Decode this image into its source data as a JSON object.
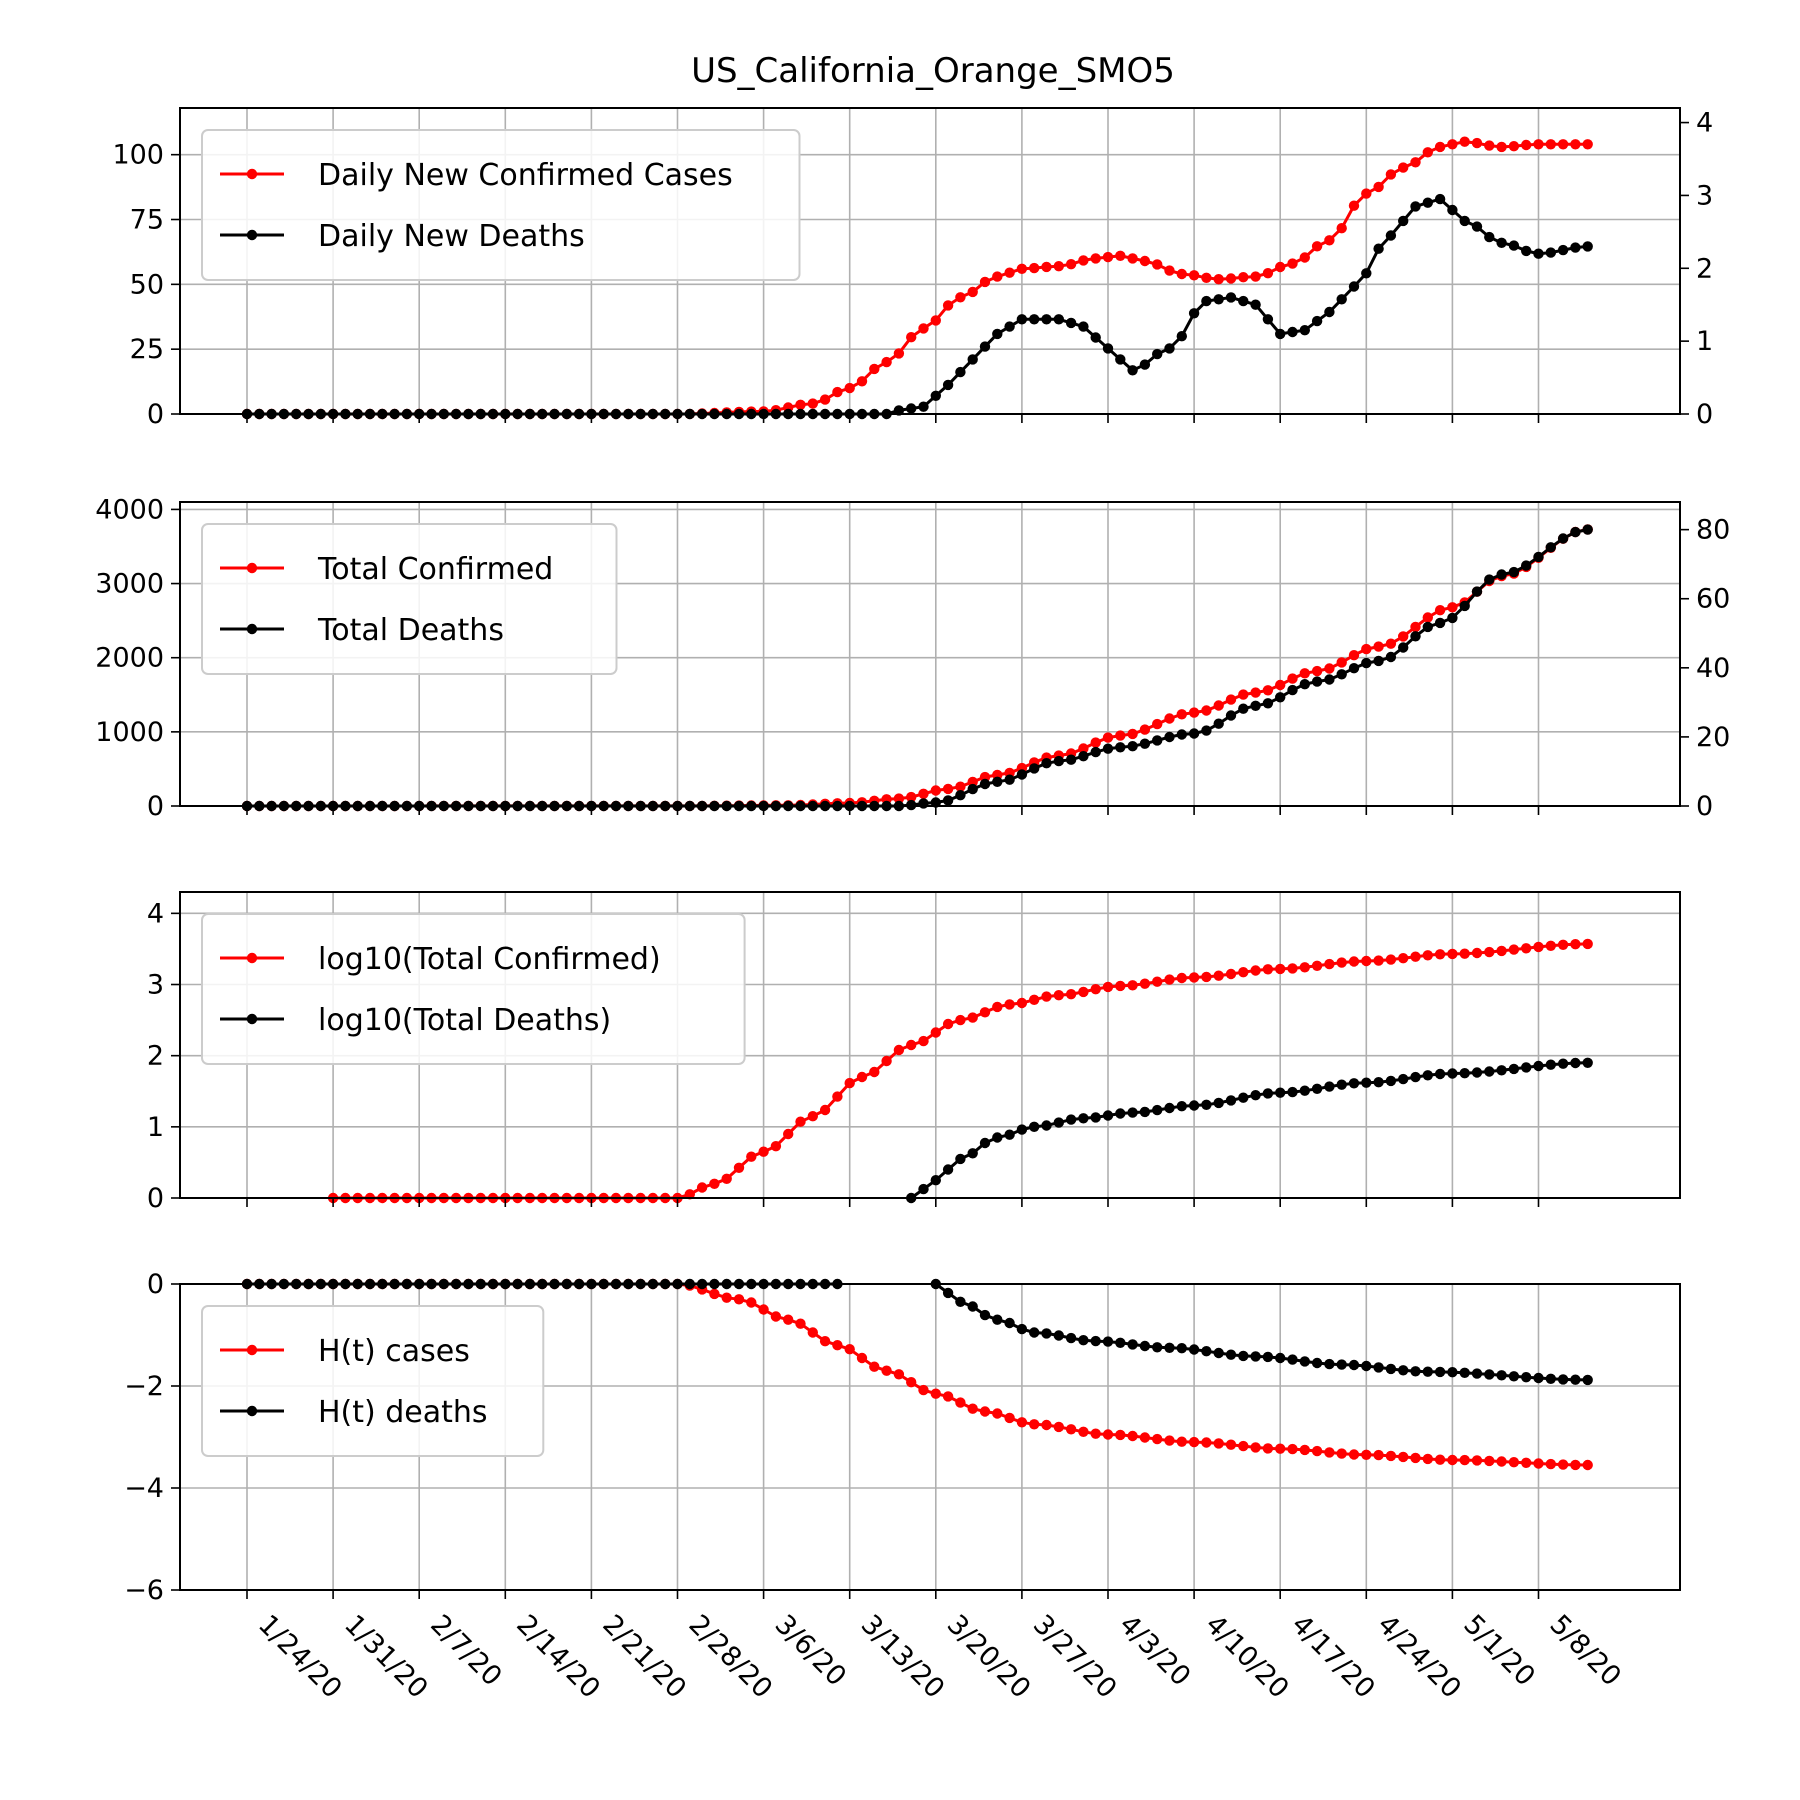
{
  "chart_data": {
    "title": "US_California_Orange_SMO5",
    "type": "line",
    "x_tick_labels": [
      "1/24/20",
      "1/31/20",
      "2/7/20",
      "2/14/20",
      "2/21/20",
      "2/28/20",
      "3/6/20",
      "3/13/20",
      "3/20/20",
      "3/27/20",
      "4/3/20",
      "4/10/20",
      "4/17/20",
      "4/24/20",
      "5/1/20",
      "5/8/20"
    ],
    "x_range": [
      "1/24/20",
      "5/12/20"
    ],
    "grid": true,
    "colors": {
      "cases": "#ff0000",
      "deaths": "#000000"
    },
    "panels": [
      {
        "ylim_left": [
          0,
          118
        ],
        "yticks_left": [
          0,
          25,
          50,
          75,
          100
        ],
        "ylim_right": [
          0,
          4.2
        ],
        "yticks_right": [
          0,
          1,
          2,
          3,
          4
        ],
        "legend": "upper left",
        "series": [
          {
            "name": "Daily New Confirmed Cases",
            "color": "#ff0000",
            "axis": "left",
            "start": "1/24/20",
            "end": "5/12/20",
            "keypoints": [
              [
                "1/24/20",
                0
              ],
              [
                "2/28/20",
                0
              ],
              [
                "3/6/20",
                1
              ],
              [
                "3/10/20",
                4
              ],
              [
                "3/13/20",
                10
              ],
              [
                "3/16/20",
                20
              ],
              [
                "3/19/20",
                33
              ],
              [
                "3/22/20",
                45
              ],
              [
                "3/25/20",
                53
              ],
              [
                "3/27/20",
                56
              ],
              [
                "3/30/20",
                57
              ],
              [
                "4/2/20",
                60
              ],
              [
                "4/4/20",
                61
              ],
              [
                "4/6/20",
                59
              ],
              [
                "4/9/20",
                54
              ],
              [
                "4/12/20",
                52
              ],
              [
                "4/15/20",
                53
              ],
              [
                "4/18/20",
                58
              ],
              [
                "4/21/20",
                67
              ],
              [
                "4/24/20",
                85
              ],
              [
                "4/27/20",
                95
              ],
              [
                "4/30/20",
                103
              ],
              [
                "5/2/20",
                105
              ],
              [
                "5/5/20",
                103
              ],
              [
                "5/8/20",
                104
              ],
              [
                "5/12/20",
                104
              ]
            ]
          },
          {
            "name": "Daily New Deaths",
            "color": "#000000",
            "axis": "right",
            "start": "1/24/20",
            "end": "5/12/20",
            "keypoints": [
              [
                "1/24/20",
                0
              ],
              [
                "3/16/20",
                0
              ],
              [
                "3/17/20",
                0.05
              ],
              [
                "3/19/20",
                0.1
              ],
              [
                "3/21/20",
                0.4
              ],
              [
                "3/23/20",
                0.75
              ],
              [
                "3/25/20",
                1.1
              ],
              [
                "3/27/20",
                1.3
              ],
              [
                "3/30/20",
                1.3
              ],
              [
                "4/1/20",
                1.2
              ],
              [
                "4/3/20",
                0.9
              ],
              [
                "4/5/20",
                0.6
              ],
              [
                "4/8/20",
                0.9
              ],
              [
                "4/11/20",
                1.55
              ],
              [
                "4/13/20",
                1.6
              ],
              [
                "4/15/20",
                1.5
              ],
              [
                "4/17/20",
                1.1
              ],
              [
                "4/19/20",
                1.15
              ],
              [
                "4/21/20",
                1.4
              ],
              [
                "4/23/20",
                1.75
              ],
              [
                "4/26/20",
                2.45
              ],
              [
                "4/28/20",
                2.85
              ],
              [
                "4/30/20",
                2.95
              ],
              [
                "5/2/20",
                2.65
              ],
              [
                "5/5/20",
                2.35
              ],
              [
                "5/8/20",
                2.2
              ],
              [
                "5/12/20",
                2.3
              ]
            ]
          }
        ]
      },
      {
        "ylim_left": [
          0,
          4100
        ],
        "yticks_left": [
          0,
          1000,
          2000,
          3000,
          4000
        ],
        "ylim_right": [
          0,
          88
        ],
        "yticks_right": [
          0,
          20,
          40,
          60,
          80
        ],
        "legend": "upper left",
        "series": [
          {
            "name": "Total Confirmed",
            "color": "#ff0000",
            "axis": "left",
            "start": "1/24/20",
            "end": "5/12/20",
            "keypoints": [
              [
                "1/24/20",
                0
              ],
              [
                "3/1/20",
                2
              ],
              [
                "3/8/20",
                10
              ],
              [
                "3/13/20",
                40
              ],
              [
                "3/17/20",
                100
              ],
              [
                "3/21/20",
                230
              ],
              [
                "3/25/20",
                420
              ],
              [
                "3/30/20",
                680
              ],
              [
                "4/4/20",
                950
              ],
              [
                "4/10/20",
                1260
              ],
              [
                "4/15/20",
                1530
              ],
              [
                "4/20/20",
                1820
              ],
              [
                "4/25/20",
                2150
              ],
              [
                "5/1/20",
                2680
              ],
              [
                "5/5/20",
                3100
              ],
              [
                "5/12/20",
                3730
              ]
            ]
          },
          {
            "name": "Total Deaths",
            "color": "#000000",
            "axis": "right",
            "start": "1/24/20",
            "end": "5/12/20",
            "keypoints": [
              [
                "1/24/20",
                0
              ],
              [
                "3/17/20",
                0
              ],
              [
                "3/20/20",
                1
              ],
              [
                "3/25/20",
                7
              ],
              [
                "3/30/20",
                13
              ],
              [
                "4/4/20",
                17
              ],
              [
                "4/10/20",
                21
              ],
              [
                "4/15/20",
                29
              ],
              [
                "4/20/20",
                36
              ],
              [
                "4/25/20",
                42
              ],
              [
                "4/30/20",
                53
              ],
              [
                "5/5/20",
                67
              ],
              [
                "5/12/20",
                80
              ]
            ]
          }
        ]
      },
      {
        "ylim_left": [
          0,
          4.3
        ],
        "yticks_left": [
          0,
          1,
          2,
          3,
          4
        ],
        "legend": "upper left",
        "series": [
          {
            "name": "log10(Total Confirmed)",
            "color": "#ff0000",
            "axis": "left",
            "start": "1/31/20",
            "end": "5/12/20",
            "keypoints": [
              [
                "1/31/20",
                0
              ],
              [
                "2/28/20",
                0
              ],
              [
                "3/2/20",
                0.2
              ],
              [
                "3/6/20",
                0.65
              ],
              [
                "3/10/20",
                1.15
              ],
              [
                "3/14/20",
                1.7
              ],
              [
                "3/18/20",
                2.15
              ],
              [
                "3/22/20",
                2.5
              ],
              [
                "3/26/20",
                2.72
              ],
              [
                "3/30/20",
                2.85
              ],
              [
                "4/4/20",
                2.98
              ],
              [
                "4/10/20",
                3.1
              ],
              [
                "4/17/20",
                3.22
              ],
              [
                "4/24/20",
                3.33
              ],
              [
                "5/1/20",
                3.43
              ],
              [
                "5/12/20",
                3.57
              ]
            ]
          },
          {
            "name": "log10(Total Deaths)",
            "color": "#000000",
            "axis": "left",
            "start": "3/18/20",
            "end": "5/12/20",
            "keypoints": [
              [
                "3/18/20",
                0
              ],
              [
                "3/20/20",
                0.25
              ],
              [
                "3/22/20",
                0.55
              ],
              [
                "3/25/20",
                0.85
              ],
              [
                "3/28/20",
                1.0
              ],
              [
                "4/1/20",
                1.12
              ],
              [
                "4/5/20",
                1.2
              ],
              [
                "4/10/20",
                1.3
              ],
              [
                "4/17/20",
                1.48
              ],
              [
                "4/24/20",
                1.62
              ],
              [
                "5/1/20",
                1.75
              ],
              [
                "5/12/20",
                1.9
              ]
            ]
          }
        ]
      },
      {
        "ylim_left": [
          -6,
          0
        ],
        "yticks_left": [
          -6,
          -4,
          -2,
          0
        ],
        "ytick_labels_left": [
          "−6",
          "−4",
          "−2",
          "0"
        ],
        "legend": "upper left",
        "series": [
          {
            "name": "H(t) cases",
            "color": "#ff0000",
            "axis": "left",
            "start": "1/24/20",
            "end": "5/12/20",
            "keypoints": [
              [
                "1/24/20",
                0
              ],
              [
                "2/28/20",
                0
              ],
              [
                "3/4/20",
                -0.3
              ],
              [
                "3/8/20",
                -0.7
              ],
              [
                "3/12/20",
                -1.2
              ],
              [
                "3/16/20",
                -1.7
              ],
              [
                "3/20/20",
                -2.15
              ],
              [
                "3/24/20",
                -2.5
              ],
              [
                "3/28/20",
                -2.75
              ],
              [
                "4/3/20",
                -2.95
              ],
              [
                "4/10/20",
                -3.1
              ],
              [
                "4/17/20",
                -3.23
              ],
              [
                "4/24/20",
                -3.35
              ],
              [
                "5/1/20",
                -3.45
              ],
              [
                "5/12/20",
                -3.55
              ]
            ]
          },
          {
            "name": "H(t) deaths",
            "color": "#000000",
            "axis": "left",
            "start": "1/24/20",
            "end": "5/12/20",
            "gap": [
              "3/13/20",
              "3/19/20"
            ],
            "keypoints": [
              [
                "1/24/20",
                0
              ],
              [
                "3/12/20",
                0
              ],
              [
                "3/20/20",
                0
              ],
              [
                "3/22/20",
                -0.35
              ],
              [
                "3/25/20",
                -0.7
              ],
              [
                "3/28/20",
                -0.95
              ],
              [
                "4/2/20",
                -1.12
              ],
              [
                "4/8/20",
                -1.25
              ],
              [
                "4/15/20",
                -1.42
              ],
              [
                "4/22/20",
                -1.58
              ],
              [
                "4/29/20",
                -1.72
              ],
              [
                "5/12/20",
                -1.88
              ]
            ]
          }
        ]
      }
    ]
  }
}
